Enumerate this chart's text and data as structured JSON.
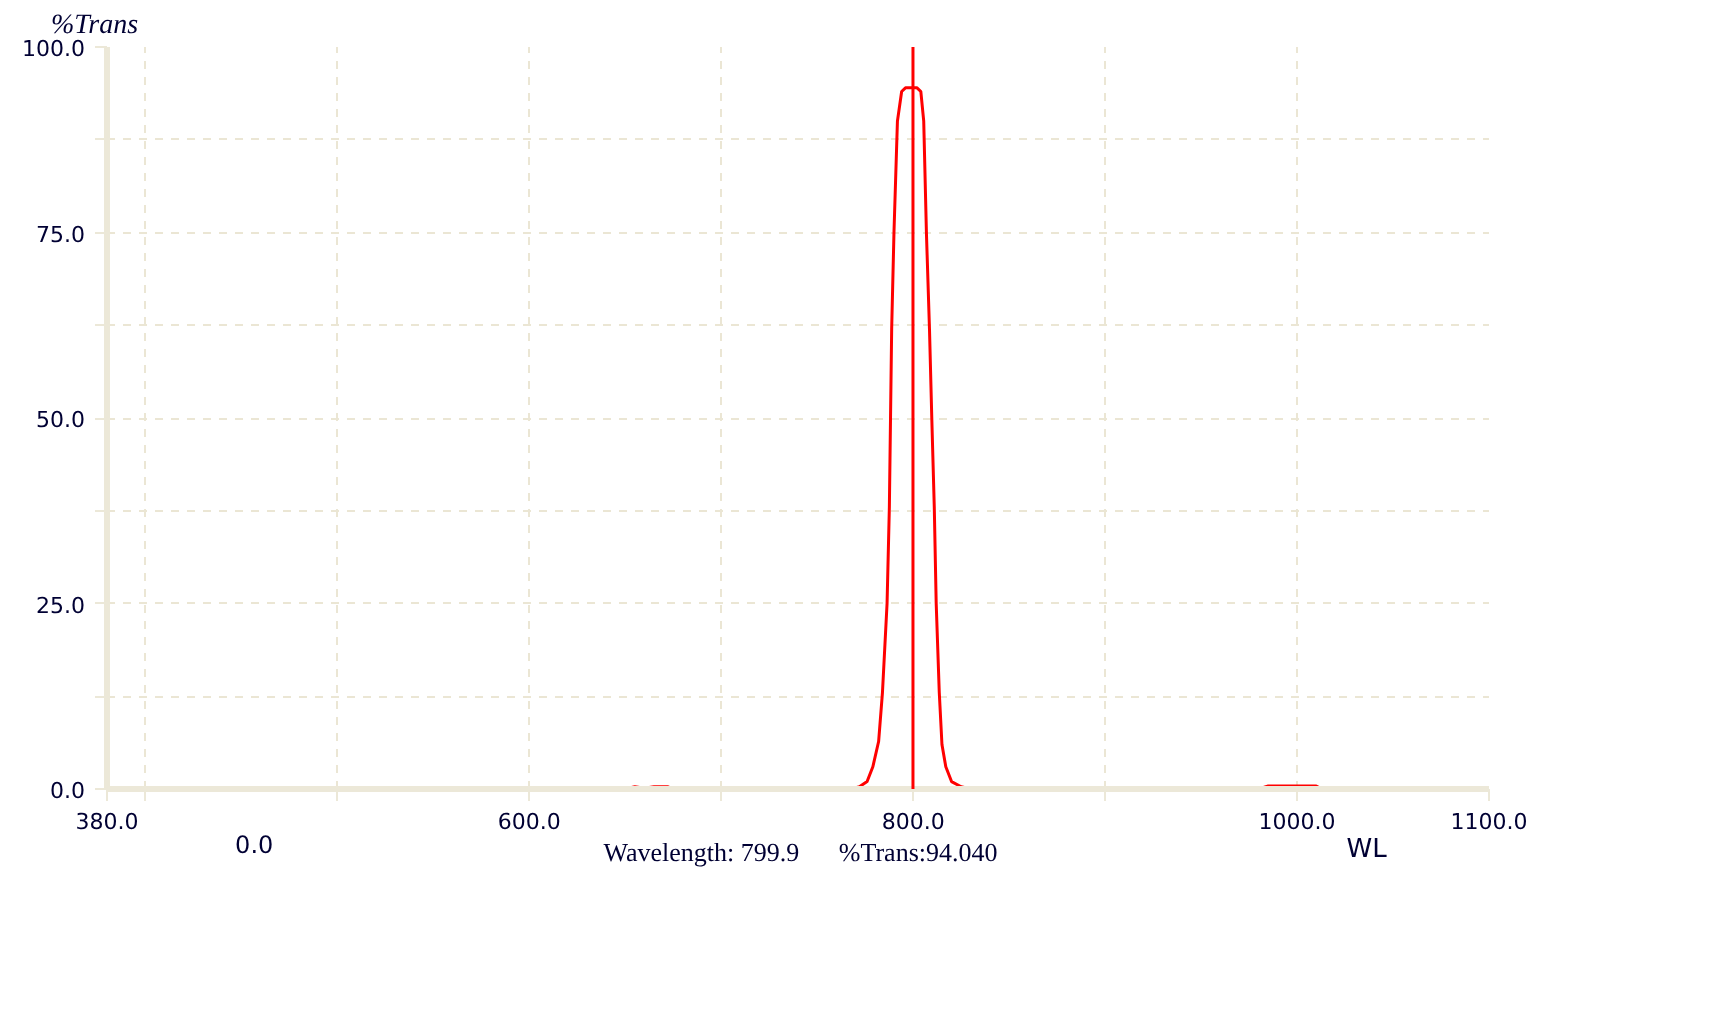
{
  "chart_data": {
    "type": "line",
    "xlabel": "WL",
    "ylabel": "%Trans",
    "x": [
      380,
      650,
      655,
      660,
      665,
      672,
      675,
      768,
      772,
      776,
      779,
      782,
      784,
      786.4,
      787.6,
      788.2,
      788.8,
      790,
      791.8,
      794,
      796,
      802,
      804,
      805.5,
      806.9,
      808.5,
      809.7,
      811,
      812,
      813.6,
      815,
      817,
      820,
      825,
      830,
      980,
      985,
      1010,
      1013,
      1100
    ],
    "series": [
      {
        "color": "#ff0000",
        "values": [
          0,
          0,
          0.3,
          0.1,
          0.3,
          0.3,
          0,
          0,
          0.3,
          1,
          3,
          6.4,
          13,
          25,
          38,
          50,
          62,
          75,
          90,
          94,
          94.5,
          94.5,
          94,
          90,
          75,
          62,
          50,
          38,
          25,
          13,
          6,
          3,
          1,
          0.3,
          0,
          0,
          0.4,
          0.4,
          0,
          0
        ]
      }
    ],
    "xlim": [
      380,
      1100
    ],
    "ylim": [
      0,
      100
    ],
    "xticks": [
      {
        "value": 380,
        "label": "380.0"
      },
      {
        "value": 400,
        "label": null
      },
      {
        "value": 500,
        "label": null
      },
      {
        "value": 600,
        "label": "600.0"
      },
      {
        "value": 700,
        "label": null
      },
      {
        "value": 800,
        "label": "800.0"
      },
      {
        "value": 900,
        "label": null
      },
      {
        "value": 1000,
        "label": "1000.0"
      },
      {
        "value": 1100,
        "label": "1100.0"
      }
    ],
    "yticks": [
      {
        "value": 0,
        "label": "0.0"
      },
      {
        "value": 12.5,
        "label": null
      },
      {
        "value": 25,
        "label": "25.0"
      },
      {
        "value": 37.5,
        "label": null
      },
      {
        "value": 50,
        "label": "50.0"
      },
      {
        "value": 62.5,
        "label": null
      },
      {
        "value": 75,
        "label": "75.0"
      },
      {
        "value": 87.5,
        "label": null
      },
      {
        "value": 100,
        "label": "100.0"
      }
    ],
    "ref_lines": [
      {
        "axis": "x",
        "value": 799.9,
        "color": "#ff0000"
      }
    ],
    "annotations": [
      "0.0",
      "Wavelength: 799.9",
      "%Trans:94.040"
    ],
    "grid": true,
    "marker": "none",
    "line_style": "solid"
  }
}
